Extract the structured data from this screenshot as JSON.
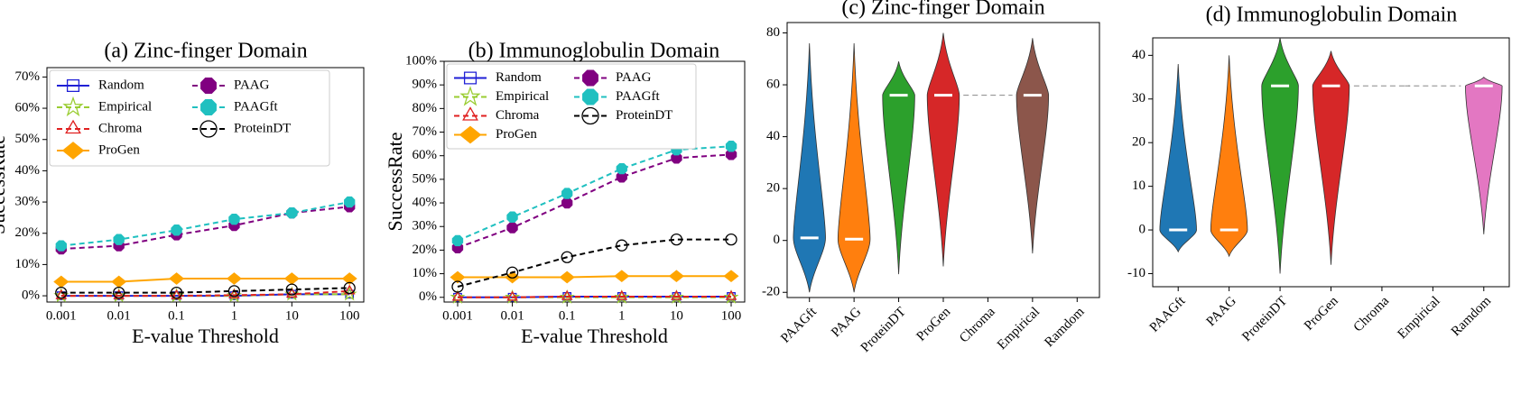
{
  "chart_data": [
    {
      "type": "line",
      "title": "(a) Zinc-finger Domain",
      "xlabel": "E-value Threshold",
      "ylabel": "SuccessRate",
      "categories": [
        "0.001",
        "0.01",
        "0.1",
        "1",
        "10",
        "100"
      ],
      "ylim": [
        -2,
        73
      ],
      "yticks": [
        {
          "value": 0,
          "label": "0%"
        },
        {
          "value": 10,
          "label": "10%"
        },
        {
          "value": 20,
          "label": "20%"
        },
        {
          "value": 30,
          "label": "30%"
        },
        {
          "value": 40,
          "label": "40%"
        },
        {
          "value": 50,
          "label": "50%"
        },
        {
          "value": 60,
          "label": "60%"
        },
        {
          "value": 70,
          "label": "70%"
        }
      ],
      "legend": "upper left",
      "series": [
        {
          "name": "Random",
          "color": "#1f1fd6",
          "marker": "square",
          "dashed": false,
          "values": [
            0,
            0,
            0,
            0,
            0.5,
            0.5
          ]
        },
        {
          "name": "Empirical",
          "color": "#9acd32",
          "marker": "star",
          "dashed": true,
          "values": [
            0,
            0,
            0,
            0,
            0.5,
            0.5
          ]
        },
        {
          "name": "Chroma",
          "color": "#e02020",
          "marker": "triangle",
          "dashed": true,
          "values": [
            0,
            0,
            0,
            0.2,
            0.5,
            1.5
          ]
        },
        {
          "name": "ProGen",
          "color": "#ffa500",
          "marker": "diamond",
          "dashed": false,
          "values": [
            4.5,
            4.5,
            5.5,
            5.5,
            5.5,
            5.5
          ]
        },
        {
          "name": "PAAG",
          "color": "#800080",
          "marker": "octagon",
          "dashed": true,
          "values": [
            15,
            16,
            19.5,
            22.5,
            26.5,
            28.5
          ]
        },
        {
          "name": "PAAGft",
          "color": "#20c0c0",
          "marker": "octagon",
          "dashed": true,
          "values": [
            16,
            18,
            21,
            24.5,
            26.5,
            30
          ]
        },
        {
          "name": "ProteinDT",
          "color": "#000000",
          "marker": "circle",
          "dashed": true,
          "values": [
            1,
            1,
            1,
            1.5,
            2,
            2.5
          ]
        }
      ]
    },
    {
      "type": "line",
      "title": "(b) Immunoglobulin Domain",
      "xlabel": "E-value Threshold",
      "ylabel": "SuccessRate",
      "categories": [
        "0.001",
        "0.01",
        "0.1",
        "1",
        "10",
        "100"
      ],
      "ylim": [
        -2,
        100
      ],
      "yticks": [
        {
          "value": 0,
          "label": "0%"
        },
        {
          "value": 10,
          "label": "10%"
        },
        {
          "value": 20,
          "label": "20%"
        },
        {
          "value": 30,
          "label": "30%"
        },
        {
          "value": 40,
          "label": "40%"
        },
        {
          "value": 50,
          "label": "50%"
        },
        {
          "value": 60,
          "label": "60%"
        },
        {
          "value": 70,
          "label": "70%"
        },
        {
          "value": 80,
          "label": "80%"
        },
        {
          "value": 90,
          "label": "90%"
        },
        {
          "value": 100,
          "label": "100%"
        }
      ],
      "legend": "upper left",
      "series": [
        {
          "name": "Random",
          "color": "#1f1fd6",
          "marker": "square",
          "dashed": false,
          "values": [
            0,
            0,
            0.3,
            0.3,
            0.3,
            0.3
          ]
        },
        {
          "name": "Empirical",
          "color": "#9acd32",
          "marker": "star",
          "dashed": true,
          "values": [
            0,
            0,
            0,
            0,
            0,
            0
          ]
        },
        {
          "name": "Chroma",
          "color": "#e02020",
          "marker": "triangle",
          "dashed": true,
          "values": [
            0,
            0,
            0.3,
            0.3,
            0.3,
            0.3
          ]
        },
        {
          "name": "ProGen",
          "color": "#ffa500",
          "marker": "diamond",
          "dashed": false,
          "values": [
            8.5,
            8.5,
            8.5,
            9,
            9,
            9
          ]
        },
        {
          "name": "PAAG",
          "color": "#800080",
          "marker": "octagon",
          "dashed": true,
          "values": [
            21,
            29.5,
            40,
            51,
            59,
            60.5
          ]
        },
        {
          "name": "PAAGft",
          "color": "#20c0c0",
          "marker": "octagon",
          "dashed": true,
          "values": [
            24,
            34,
            44,
            54.5,
            62.5,
            64
          ]
        },
        {
          "name": "ProteinDT",
          "color": "#000000",
          "marker": "circle",
          "dashed": true,
          "values": [
            4.5,
            10.5,
            17,
            22,
            24.5,
            24.5
          ]
        }
      ]
    },
    {
      "type": "violin",
      "title": "(c) Zinc-finger Domain",
      "categories": [
        "PAAGft",
        "PAAG",
        "ProteinDT",
        "ProGen",
        "Chroma",
        "Empirical",
        "Ramdom"
      ],
      "colors": [
        "#1f77b4",
        "#ff7f0e",
        "#2ca02c",
        "#d62728",
        "#9467bd",
        "#8c564b",
        null
      ],
      "min": [
        -20,
        -20,
        -13,
        -10,
        56,
        -5,
        null
      ],
      "max": [
        76,
        76,
        69,
        80,
        56,
        78,
        null
      ],
      "median": [
        1,
        0.5,
        56,
        56,
        56,
        56,
        null
      ],
      "ylim": [
        -22,
        84
      ],
      "yticks": [
        -20,
        0,
        20,
        40,
        60,
        80
      ]
    },
    {
      "type": "violin",
      "title": "(d) Immunoglobulin Domain",
      "categories": [
        "PAAGft",
        "PAAG",
        "ProteinDT",
        "ProGen",
        "Chroma",
        "Empirical",
        "Ramdom"
      ],
      "colors": [
        "#1f77b4",
        "#ff7f0e",
        "#2ca02c",
        "#d62728",
        "#9467bd",
        "#8c564b",
        "#e377c2"
      ],
      "min": [
        -5,
        -6,
        -10,
        -8,
        33,
        33,
        -1
      ],
      "max": [
        38,
        40,
        44,
        41,
        33,
        33,
        35
      ],
      "median": [
        0,
        0,
        33,
        33,
        33,
        33,
        33
      ],
      "ylim": [
        -13,
        44
      ],
      "yticks": [
        -10,
        0,
        10,
        20,
        30,
        40
      ]
    }
  ]
}
